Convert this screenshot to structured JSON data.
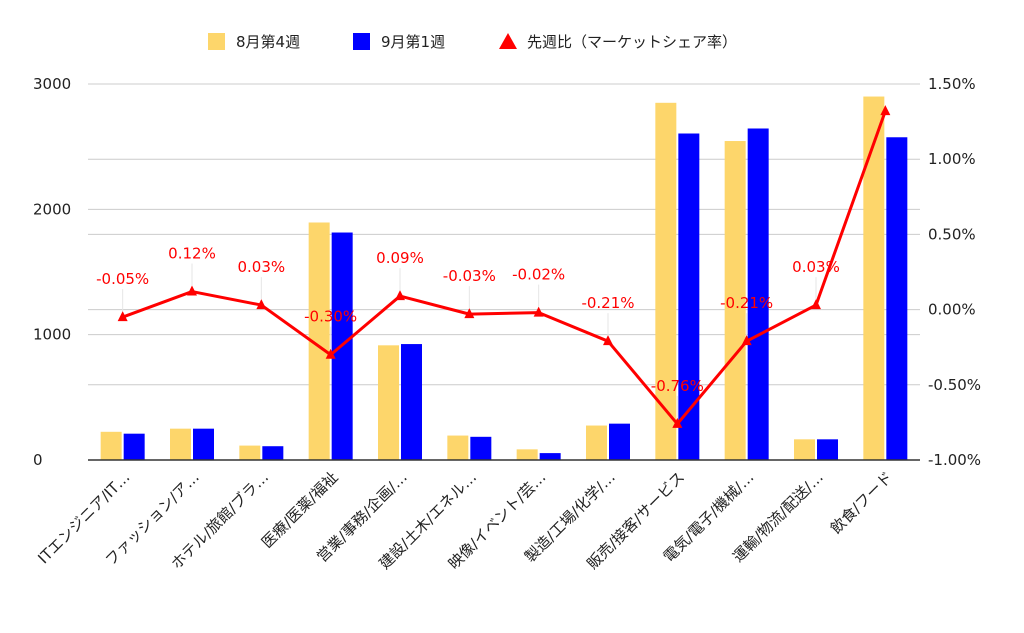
{
  "chart_data": {
    "type": "bar",
    "categories": [
      "ITエンジニア/IT…",
      "ファッション/ア…",
      "ホテル/旅館/ブラ…",
      "医療/医薬/福祉",
      "営業/事務/企画/…",
      "建設/土木/エネル…",
      "映像/イベント/芸…",
      "製造/工場/化学/…",
      "販売/接客/サービス",
      "電気/電子/機械/…",
      "運輸/物流/配送/…",
      "飲食/フード"
    ],
    "series": [
      {
        "name": "8月第4週",
        "type": "bar",
        "axis": "left",
        "color": "#fdd66b",
        "values": [
          225,
          250,
          115,
          1895,
          915,
          195,
          85,
          275,
          2850,
          2545,
          165,
          2900
        ]
      },
      {
        "name": "9月第1週",
        "type": "bar",
        "axis": "left",
        "color": "#0000ff",
        "values": [
          210,
          250,
          110,
          1815,
          925,
          185,
          55,
          290,
          2605,
          2645,
          165,
          2575
        ]
      },
      {
        "name": "先週比（マーケットシェア率）",
        "type": "line",
        "axis": "right",
        "color": "#ff0000",
        "values": [
          -0.05,
          0.12,
          0.03,
          -0.3,
          0.09,
          -0.03,
          -0.02,
          -0.21,
          -0.76,
          -0.21,
          0.03,
          1.32
        ],
        "labels": [
          "-0.05%",
          "0.12%",
          "0.03%",
          "-0.30%",
          "0.09%",
          "-0.03%",
          "-0.02%",
          "-0.21%",
          "-0.76%",
          "-0.21%",
          "0.03%",
          ""
        ]
      }
    ],
    "y_left": {
      "min": 0,
      "max": 3000,
      "ticks": [
        0,
        1000,
        2000,
        3000
      ],
      "tick_labels": [
        "0",
        "1000",
        "2000",
        "3000"
      ]
    },
    "y_right": {
      "min": -1.0,
      "max": 1.5,
      "ticks": [
        -1.0,
        -0.5,
        0.0,
        0.5,
        1.0,
        1.5
      ],
      "tick_labels": [
        "-1.00%",
        "-0.50%",
        "0.00%",
        "0.50%",
        "1.00%",
        "1.50%"
      ]
    },
    "grid": true,
    "legend_position": "top-center"
  }
}
